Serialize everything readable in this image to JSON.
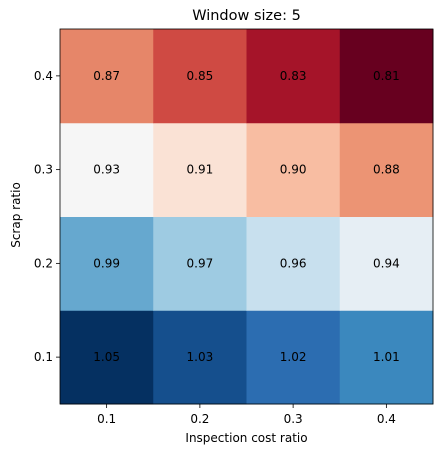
{
  "chart_data": {
    "type": "heatmap",
    "title": "Window size: 5",
    "xlabel": "Inspection cost ratio",
    "ylabel": "Scrap ratio",
    "x": [
      "0.1",
      "0.2",
      "0.3",
      "0.4"
    ],
    "y": [
      "0.1",
      "0.2",
      "0.3",
      "0.4"
    ],
    "values": [
      [
        1.05,
        1.03,
        1.02,
        1.01
      ],
      [
        0.99,
        0.97,
        0.96,
        0.94
      ],
      [
        0.93,
        0.91,
        0.9,
        0.88
      ],
      [
        0.87,
        0.85,
        0.83,
        0.81
      ]
    ],
    "value_labels": [
      [
        "1.05",
        "1.03",
        "1.02",
        "1.01"
      ],
      [
        "0.99",
        "0.97",
        "0.96",
        "0.94"
      ],
      [
        "0.93",
        "0.91",
        "0.90",
        "0.88"
      ],
      [
        "0.87",
        "0.85",
        "0.83",
        "0.81"
      ]
    ],
    "colormap": "RdBu",
    "cell_colors": [
      [
        "#053061",
        "#154f8d",
        "#2c6db1",
        "#3b88be"
      ],
      [
        "#66a8cf",
        "#9ecbe2",
        "#c8e0ee",
        "#e6eef4"
      ],
      [
        "#f6f6f6",
        "#fae2d5",
        "#f8bda2",
        "#ec9474"
      ],
      [
        "#e68669",
        "#cf4a43",
        "#a51429",
        "#67001f"
      ]
    ],
    "grid": false,
    "legend": "none"
  }
}
